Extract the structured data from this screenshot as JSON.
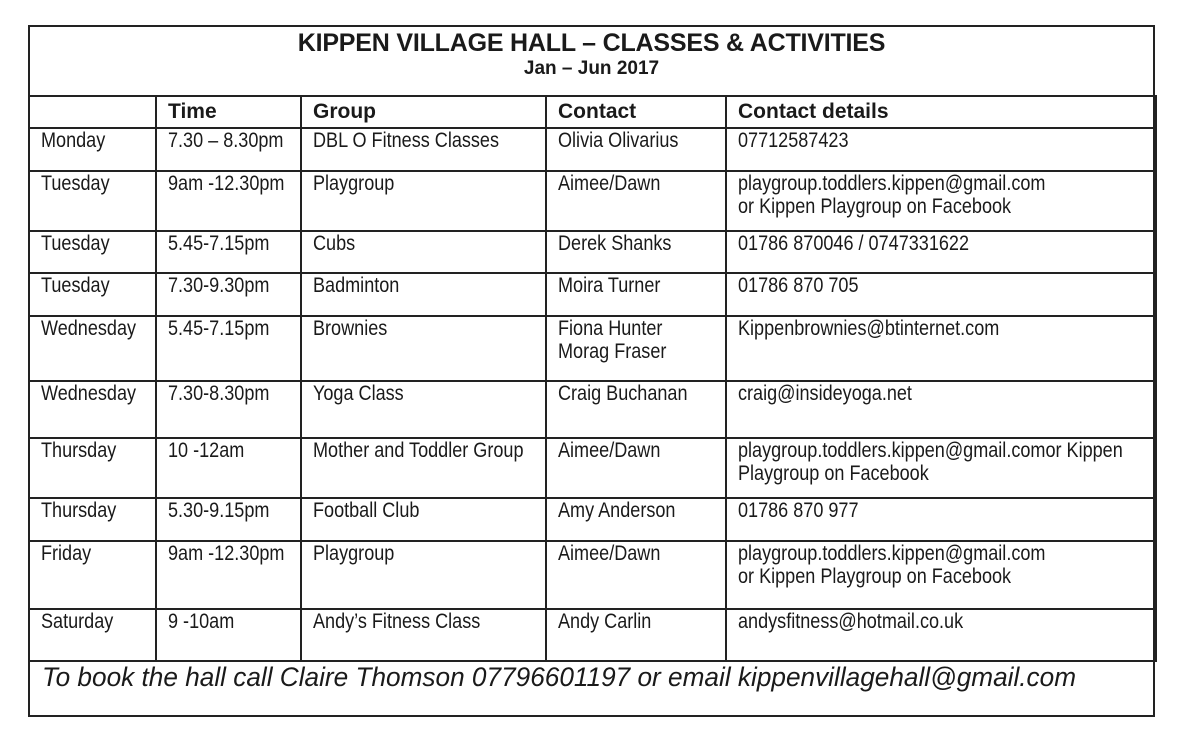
{
  "title": "KIPPEN VILLAGE HALL – CLASSES & ACTIVITIES",
  "subtitle": "Jan – Jun 2017",
  "headers": [
    "",
    "Time",
    "Group",
    "Contact",
    "Contact details"
  ],
  "rows": [
    {
      "day": [
        "Monday"
      ],
      "time": [
        "7.30 – 8.30pm"
      ],
      "group": [
        "DBL O Fitness Classes"
      ],
      "contact": [
        "Olivia Olivarius"
      ],
      "details": [
        "07712587423"
      ]
    },
    {
      "day": [
        "Tuesday"
      ],
      "time": [
        "9am -12.30pm"
      ],
      "group": [
        "Playgroup"
      ],
      "contact": [
        "Aimee/Dawn"
      ],
      "details": [
        "playgroup.toddlers.kippen@gmail.com",
        "or Kippen Playgroup on Facebook"
      ]
    },
    {
      "day": [
        "Tuesday"
      ],
      "time": [
        "5.45-7.15pm"
      ],
      "group": [
        "Cubs"
      ],
      "contact": [
        "Derek Shanks"
      ],
      "details": [
        "01786 870046 / 0747331622"
      ]
    },
    {
      "day": [
        "Tuesday"
      ],
      "time": [
        "7.30-9.30pm"
      ],
      "group": [
        "Badminton"
      ],
      "contact": [
        "Moira Turner"
      ],
      "details": [
        "01786 870 705"
      ]
    },
    {
      "day": [
        "Wednesday"
      ],
      "time": [
        "5.45-7.15pm"
      ],
      "group": [
        "Brownies"
      ],
      "contact": [
        "Fiona Hunter",
        "Morag Fraser"
      ],
      "details": [
        "Kippenbrownies@btinternet.com"
      ]
    },
    {
      "day": [
        "Wednesday"
      ],
      "time": [
        "7.30-8.30pm"
      ],
      "group": [
        "Yoga Class"
      ],
      "contact": [
        "Craig Buchanan"
      ],
      "details": [
        "craig@insideyoga.net"
      ]
    },
    {
      "day": [
        "Thursday"
      ],
      "time": [
        "10  -12am"
      ],
      "group": [
        "Mother and Toddler Group"
      ],
      "contact": [
        "Aimee/Dawn"
      ],
      "details": [
        "playgroup.toddlers.kippen@gmail.comor Kippen",
        "Playgroup on Facebook"
      ]
    },
    {
      "day": [
        "Thursday"
      ],
      "time": [
        "5.30-9.15pm"
      ],
      "group": [
        "Football Club"
      ],
      "contact": [
        "Amy Anderson"
      ],
      "details": [
        "01786 870 977"
      ]
    },
    {
      "day": [
        "Friday"
      ],
      "time": [
        "9am -12.30pm"
      ],
      "group": [
        "Playgroup"
      ],
      "contact": [
        "Aimee/Dawn"
      ],
      "details": [
        "playgroup.toddlers.kippen@gmail.com",
        "or Kippen Playgroup on Facebook"
      ]
    },
    {
      "day": [
        "Saturday"
      ],
      "time": [
        "9 -10am"
      ],
      "group": [
        "Andy’s Fitness Class"
      ],
      "contact": [
        "Andy Carlin"
      ],
      "details": [
        "andysfitness@hotmail.co.uk"
      ]
    }
  ],
  "footer": "To book the hall call Claire Thomson 07796601197 or email kippenvillagehall@gmail.com"
}
